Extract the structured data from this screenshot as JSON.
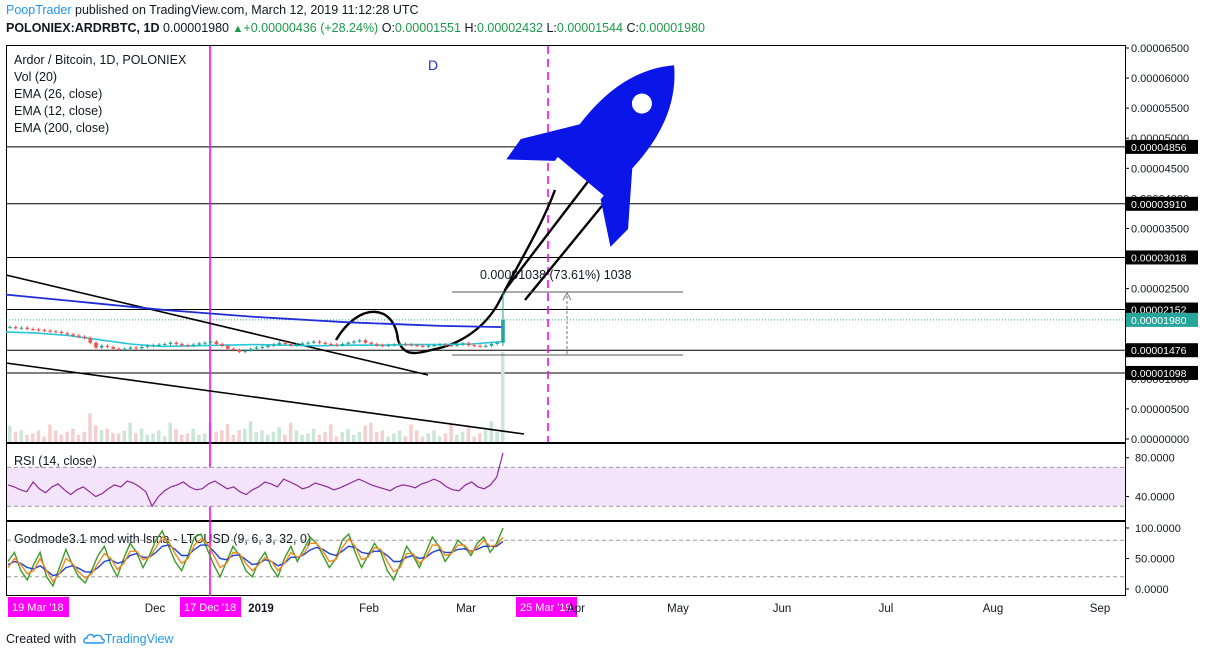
{
  "header": {
    "author": "PoopTrader",
    "published": " published on TradingView.com, March 12, 2019 11:12:28 UTC",
    "symbol": "POLONIEX:ARDRBTC, 1D",
    "last": "0.00001980",
    "change_arrow": "▲",
    "change": "+0.00000436 (+28.24%)",
    "o_label": "O:",
    "o_value": "0.00001551",
    "h_label": "H:",
    "h_value": "0.00002432",
    "l_label": "L:",
    "l_value": "0.00001544",
    "c_label": "C:",
    "c_value": "0.00001980"
  },
  "legend": {
    "title": "Ardor / Bitcoin, 1D, POLONIEX",
    "items": [
      "Vol (20)",
      "EMA (26, close)",
      "EMA (12, close)",
      "EMA (200, close)"
    ],
    "marker": "D"
  },
  "rsi_label": "RSI (14, close)",
  "god_label": "Godmode3.1 mod with lsma - LTCUSD (9, 6, 3, 32, 0)",
  "footer": {
    "created": "Created with",
    "brand": "TradingView"
  },
  "colors": {
    "rocket": "#0a15e8",
    "magenta": "#ff00ff",
    "ema200": "#1f2cd8",
    "ema_cyan": "#26c6da",
    "rsi_band": "#f3e3fb",
    "rsi_line": "#8e2a96",
    "god_green": "#3c9b28",
    "god_blue": "#1f3fd8",
    "god_orange": "#f08a1f",
    "last_price_badge": "#26a69a",
    "label_badge": "#000000",
    "date_badge": "#ff00ff"
  },
  "chart_data": [
    {
      "type": "candlestick",
      "pane": "main",
      "price_axis_labels": [
        "0.00006500",
        "0.00006000",
        "0.00005500",
        "0.00005000",
        "0.00004500",
        "0.00004000",
        "0.00003500",
        "0.00003000",
        "0.00002500",
        "0.00002000",
        "0.00001500",
        "0.00001000",
        "0.00000500",
        "0.00000000"
      ],
      "ylim": [
        0,
        6.5e-05
      ],
      "x_axis_labels": [
        "Dec",
        "2019",
        "Feb",
        "Mar",
        "Apr",
        "May",
        "Jun",
        "Jul",
        "Aug",
        "Sep"
      ],
      "horizontal_levels": [
        {
          "price": 4.856e-05,
          "label": "0.00004856"
        },
        {
          "price": 3.91e-05,
          "label": "0.00003910"
        },
        {
          "price": 3.018e-05,
          "label": "0.00003018"
        },
        {
          "price": 2.152e-05,
          "label": "0.00002152"
        },
        {
          "price": 1.476e-05,
          "label": "0.00001476"
        },
        {
          "price": 1.098e-05,
          "label": "0.00001098"
        }
      ],
      "last_price": {
        "price": 1.98e-05,
        "label": "0.00001980"
      },
      "measure": {
        "text": "0.00001038 (73.61%) 1038",
        "from": 1.41e-05,
        "to": 2.448e-05
      },
      "vertical_markers": [
        {
          "date": "19 Mar '18",
          "style": "solid"
        },
        {
          "date": "17 Dec '18",
          "style": "solid"
        },
        {
          "date": "25 Mar '19",
          "style": "dashed"
        }
      ],
      "closes": [
        1.86e-05,
        1.84e-05,
        1.85e-05,
        1.83e-05,
        1.82e-05,
        1.81e-05,
        1.8e-05,
        1.79e-05,
        1.78e-05,
        1.76e-05,
        1.74e-05,
        1.72e-05,
        1.7e-05,
        1.68e-05,
        1.6e-05,
        1.52e-05,
        1.55e-05,
        1.53e-05,
        1.5e-05,
        1.49e-05,
        1.5e-05,
        1.52e-05,
        1.51e-05,
        1.53e-05,
        1.55e-05,
        1.56e-05,
        1.57e-05,
        1.58e-05,
        1.6e-05,
        1.58e-05,
        1.56e-05,
        1.55e-05,
        1.57e-05,
        1.59e-05,
        1.6e-05,
        1.62e-05,
        1.58e-05,
        1.55e-05,
        1.5e-05,
        1.48e-05,
        1.45e-05,
        1.47e-05,
        1.5e-05,
        1.52e-05,
        1.53e-05,
        1.55e-05,
        1.57e-05,
        1.6e-05,
        1.58e-05,
        1.56e-05,
        1.57e-05,
        1.59e-05,
        1.6e-05,
        1.62e-05,
        1.6e-05,
        1.58e-05,
        1.57e-05,
        1.56e-05,
        1.58e-05,
        1.6e-05,
        1.62e-05,
        1.64e-05,
        1.6e-05,
        1.58e-05,
        1.56e-05,
        1.55e-05,
        1.56e-05,
        1.57e-05,
        1.58e-05,
        1.57e-05,
        1.56e-05,
        1.55e-05,
        1.54e-05,
        1.55e-05,
        1.56e-05,
        1.57e-05,
        1.56e-05,
        1.55e-05,
        1.57e-05,
        1.59e-05,
        1.56e-05,
        1.55e-05,
        1.54e-05,
        1.55e-05,
        1.58e-05,
        1.6e-05,
        1.98e-05
      ],
      "ema200": [
        2.4e-05,
        2.35e-05,
        2.3e-05,
        2.25e-05,
        2.2e-05,
        2.15e-05,
        2.11e-05,
        2.07e-05,
        2.03e-05,
        2e-05,
        1.97e-05,
        1.94e-05,
        1.92e-05,
        1.9e-05,
        1.88e-05,
        1.87e-05,
        1.86e-05
      ],
      "ema_fast": [
        1.78e-05,
        1.76e-05,
        1.72e-05,
        1.65e-05,
        1.58e-05,
        1.54e-05,
        1.55e-05,
        1.56e-05,
        1.57e-05,
        1.56e-05,
        1.55e-05,
        1.56e-05,
        1.56e-05,
        1.57e-05,
        1.57e-05,
        1.58e-05,
        1.62e-05
      ]
    },
    {
      "type": "line",
      "pane": "rsi",
      "title": "RSI (14, close)",
      "axis_labels": [
        "80.0000",
        "40.0000"
      ],
      "band": [
        30,
        70
      ],
      "values": [
        52,
        50,
        47,
        45,
        55,
        48,
        44,
        50,
        53,
        47,
        42,
        47,
        50,
        45,
        40,
        43,
        48,
        52,
        50,
        56,
        54,
        50,
        45,
        30,
        40,
        46,
        50,
        52,
        55,
        50,
        47,
        48,
        53,
        56,
        52,
        48,
        50,
        45,
        42,
        47,
        50,
        55,
        53,
        50,
        58,
        55,
        52,
        48,
        50,
        54,
        52,
        50,
        47,
        49,
        52,
        55,
        58,
        55,
        52,
        50,
        48,
        46,
        50,
        52,
        51,
        49,
        53,
        55,
        58,
        55,
        50,
        47,
        46,
        52,
        55,
        50,
        48,
        52,
        60,
        85
      ]
    },
    {
      "type": "line",
      "pane": "oscillator",
      "title": "Godmode3.1 mod with lsma - LTCUSD (9, 6, 3, 32, 0)",
      "axis_labels": [
        "100.0000",
        "50.0000",
        "0.0000"
      ],
      "guides": [
        80,
        20
      ],
      "series": [
        {
          "name": "green",
          "values": [
            45,
            60,
            30,
            15,
            40,
            60,
            20,
            5,
            35,
            65,
            40,
            20,
            10,
            30,
            55,
            70,
            40,
            20,
            50,
            75,
            60,
            35,
            55,
            80,
            95,
            70,
            45,
            30,
            55,
            85,
            90,
            65,
            40,
            20,
            45,
            70,
            55,
            30,
            20,
            45,
            60,
            35,
            20,
            50,
            70,
            45,
            65,
            85,
            75,
            55,
            35,
            50,
            80,
            90,
            60,
            35,
            55,
            75,
            60,
            30,
            15,
            40,
            70,
            55,
            35,
            60,
            85,
            70,
            45,
            60,
            80,
            70,
            55,
            75,
            85,
            60,
            75,
            100
          ]
        },
        {
          "name": "blue",
          "values": [
            40,
            45,
            42,
            35,
            33,
            38,
            30,
            22,
            25,
            35,
            38,
            34,
            28,
            28,
            35,
            45,
            48,
            42,
            45,
            55,
            58,
            52,
            52,
            60,
            70,
            72,
            65,
            55,
            55,
            65,
            72,
            72,
            62,
            50,
            48,
            55,
            56,
            48,
            40,
            42,
            48,
            45,
            38,
            42,
            52,
            52,
            56,
            64,
            68,
            65,
            58,
            55,
            62,
            70,
            68,
            60,
            58,
            62,
            62,
            55,
            45,
            45,
            52,
            55,
            50,
            52,
            60,
            64,
            60,
            60,
            65,
            66,
            62,
            65,
            70,
            70,
            70,
            78
          ]
        },
        {
          "name": "orange",
          "values": [
            35,
            50,
            40,
            25,
            30,
            50,
            30,
            12,
            25,
            50,
            42,
            28,
            18,
            25,
            42,
            58,
            50,
            32,
            42,
            62,
            62,
            48,
            52,
            68,
            85,
            78,
            58,
            42,
            50,
            72,
            82,
            75,
            55,
            35,
            42,
            60,
            58,
            42,
            30,
            40,
            52,
            45,
            30,
            42,
            60,
            52,
            58,
            75,
            75,
            62,
            45,
            48,
            68,
            82,
            70,
            48,
            52,
            68,
            65,
            45,
            28,
            35,
            58,
            58,
            42,
            52,
            72,
            72,
            55,
            58,
            72,
            72,
            60,
            68,
            80,
            70,
            72,
            85
          ]
        }
      ]
    }
  ]
}
